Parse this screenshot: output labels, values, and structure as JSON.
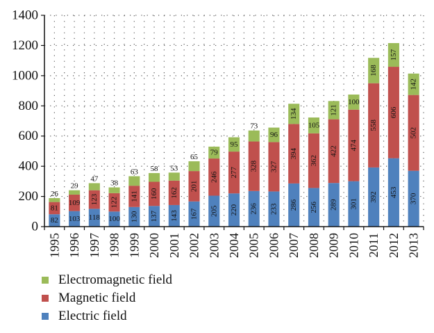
{
  "chart_data": {
    "type": "bar",
    "stacked": true,
    "categories": [
      "1995",
      "1996",
      "1997",
      "1998",
      "1999",
      "2000",
      "2001",
      "2002",
      "2003",
      "2004",
      "2005",
      "2006",
      "2007",
      "2008",
      "2009",
      "2010",
      "2011",
      "2012",
      "2013"
    ],
    "series": [
      {
        "name": "Electric field",
        "color": "#4F81BD",
        "values": [
          82,
          103,
          118,
          100,
          130,
          137,
          143,
          167,
          205,
          220,
          236,
          233,
          286,
          256,
          289,
          301,
          392,
          453,
          370
        ]
      },
      {
        "name": "Magnetic field",
        "color": "#C0504D",
        "values": [
          81,
          109,
          123,
          122,
          141,
          160,
          162,
          201,
          246,
          277,
          328,
          327,
          394,
          362,
          422,
          474,
          558,
          606,
          502
        ]
      },
      {
        "name": "Electromagnetic field",
        "color": "#9BBB59",
        "values": [
          26,
          29,
          47,
          38,
          63,
          58,
          53,
          65,
          79,
          95,
          73,
          96,
          134,
          105,
          121,
          100,
          168,
          157,
          142
        ]
      }
    ],
    "ylim": [
      0,
      1400
    ],
    "yticks": [
      0,
      200,
      400,
      600,
      800,
      1000,
      1200,
      1400
    ],
    "legend_order": [
      "Electromagnetic field",
      "Magnetic field",
      "Electric field"
    ],
    "legend_position": "bottom-left",
    "grid": "dotted"
  }
}
